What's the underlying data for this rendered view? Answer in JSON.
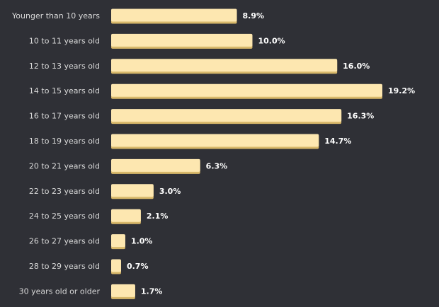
{
  "chart_data": {
    "type": "bar",
    "orientation": "horizontal",
    "categories": [
      "Younger than 10 years",
      "10 to 11 years old",
      "12 to 13 years old",
      "14 to 15 years old",
      "16 to 17 years old",
      "18 to 19 years old",
      "20 to 21 years old",
      "22 to 23 years old",
      "24 to 25 years old",
      "26 to 27 years old",
      "28 to 29 years old",
      "30 years old or older"
    ],
    "values": [
      8.9,
      10.0,
      16.0,
      19.2,
      16.3,
      14.7,
      6.3,
      3.0,
      2.1,
      1.0,
      0.7,
      1.7
    ],
    "value_labels": [
      "8.9%",
      "10.0%",
      "16.0%",
      "19.2%",
      "16.3%",
      "14.7%",
      "6.3%",
      "3.0%",
      "2.1%",
      "1.0%",
      "0.7%",
      "1.7%"
    ],
    "title": "",
    "xlabel": "",
    "ylabel": "",
    "xlim": [
      0,
      19.2
    ],
    "grid": false,
    "legend": "none",
    "colors": {
      "bar": "#fde7b0",
      "bar_shadow": "#d8b86a",
      "background": "#2f3036",
      "category_text": "#d9d9d9",
      "value_text": "#ffffff"
    }
  }
}
